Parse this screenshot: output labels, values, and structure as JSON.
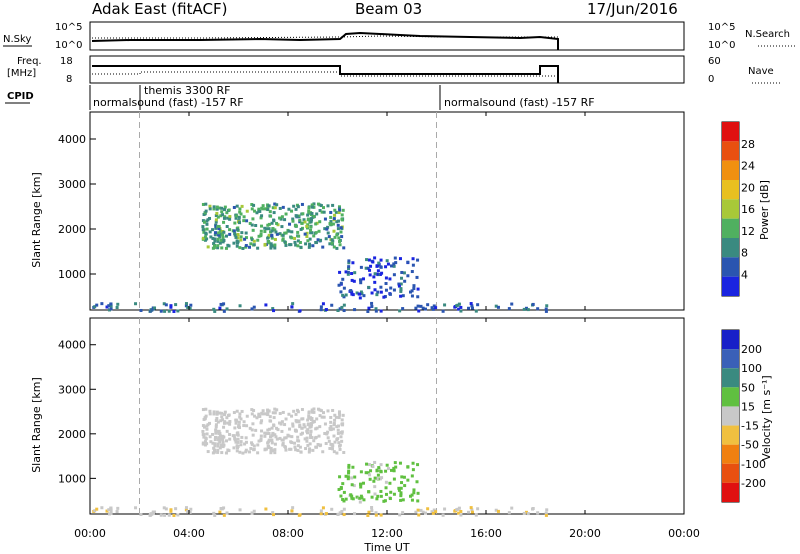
{
  "header": {
    "station": "Adak East (fitACF)",
    "beam": "Beam 03",
    "date": "17/Jun/2016"
  },
  "panels": {
    "nsky": {
      "left_label": "N.Sky",
      "right_label": "N.Search",
      "left_ticks": [
        "10^5",
        "10^0"
      ],
      "right_ticks": [
        "10^5",
        "10^0"
      ]
    },
    "freq": {
      "left_label_1": "Freq.",
      "left_label_2": "[MHz]",
      "right_label": "Nave",
      "left_ticks": [
        "18",
        "8"
      ],
      "right_ticks": [
        "60",
        "0"
      ]
    },
    "cpid": {
      "label": "CPID",
      "programs": [
        "normalsound (fast) -157 RF",
        "themis 3300 RF",
        "normalsound (fast) -157 RF"
      ]
    }
  },
  "power_plot": {
    "ylabel": "Slant Range [km]",
    "colorbar_label": "Power [dB]",
    "colorbar_ticks": [
      "28",
      "24",
      "20",
      "16",
      "12",
      "8",
      "4"
    ]
  },
  "velocity_plot": {
    "ylabel": "Slant Range [km]",
    "colorbar_label": "Velocity [m s⁻¹]",
    "colorbar_ticks": [
      "200",
      "100",
      "50",
      "15",
      "-15",
      "-50",
      "-100",
      "-200"
    ]
  },
  "x_axis": {
    "label": "Time UT",
    "ticks": [
      "00:00",
      "04:00",
      "08:00",
      "12:00",
      "16:00",
      "20:00",
      "00:00"
    ]
  },
  "chart_data": {
    "type": "heatmap",
    "x_range_hours": [
      0,
      24
    ],
    "y_range_km": [
      200,
      4600
    ],
    "y_ticks": [
      1000,
      2000,
      3000,
      4000
    ],
    "mode_changes_hours": [
      2.0,
      14.0
    ],
    "data_end_hour": 18.6,
    "power_colors": [
      "#1a24e0",
      "#2a55b0",
      "#3a8a80",
      "#50b060",
      "#a8c838",
      "#e8c020",
      "#f09010",
      "#e85010",
      "#e01010"
    ],
    "velocity_colors": [
      "#1820c8",
      "#3a60b8",
      "#3a8a80",
      "#60c040",
      "#c8c8c8",
      "#f0c040",
      "#f08010",
      "#e85010",
      "#e01010"
    ],
    "regions": [
      {
        "name": "main echo",
        "x": [
          4.5,
          10.2
        ],
        "y": [
          1600,
          2600
        ],
        "power": 10,
        "velocity": 0
      },
      {
        "name": "late echo",
        "x": [
          10.0,
          13.2
        ],
        "y": [
          500,
          1400
        ],
        "power": 4,
        "velocity": 40
      },
      {
        "name": "ground scatter",
        "x": [
          0.0,
          18.6
        ],
        "y": [
          200,
          380
        ],
        "power": 6,
        "velocity": -20
      }
    ]
  }
}
